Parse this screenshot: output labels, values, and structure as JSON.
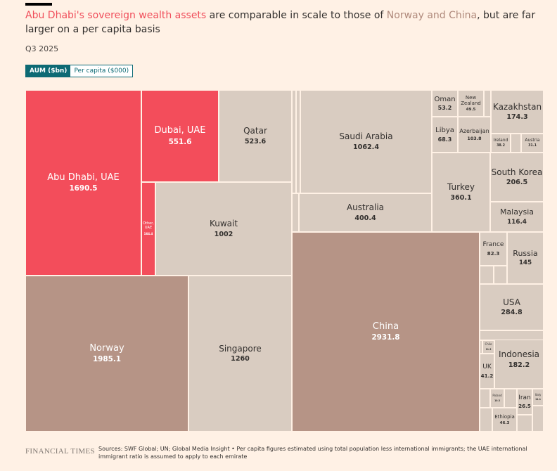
{
  "header": {
    "title_parts": [
      {
        "text": "Abu Dhabi's sovereign wealth assets",
        "style": "red"
      },
      {
        "text": " are comparable in scale to those of ",
        "style": "plain"
      },
      {
        "text": "Norway and China",
        "style": "brown"
      },
      {
        "text": ", but are far larger on a per capita basis",
        "style": "plain"
      }
    ],
    "subtitle": "Q3 2025",
    "toggle": [
      "AUM ($bn)",
      "Per capita ($000)"
    ],
    "toggle_selected": "AUM ($bn)"
  },
  "colors": {
    "uae": "#f34d5b",
    "highlight": "#b69486",
    "other": "#d9ccc1",
    "accent": "#0d6a74"
  },
  "chart_data": {
    "type": "treemap",
    "unit": "AUM ($bn)",
    "items": [
      {
        "name": "Abu Dhabi, UAE",
        "value": 1690.5,
        "group": "uae"
      },
      {
        "name": "Dubai, UAE",
        "value": 551.6,
        "group": "uae"
      },
      {
        "name": "Other, UAE",
        "value": 164.4,
        "group": "uae"
      },
      {
        "name": "Qatar",
        "value": 523.6,
        "group": "other"
      },
      {
        "name": "Kuwait",
        "value": 1002,
        "group": "other"
      },
      {
        "name": "Norway",
        "value": 1985.1,
        "group": "highlight"
      },
      {
        "name": "Singapore",
        "value": 1260,
        "group": "other"
      },
      {
        "name": "Saudi Arabia",
        "value": 1062.4,
        "group": "other"
      },
      {
        "name": "Australia",
        "value": 400.4,
        "group": "other"
      },
      {
        "name": "China",
        "value": 2931.8,
        "group": "highlight"
      },
      {
        "name": "Oman",
        "value": 53.2,
        "group": "other"
      },
      {
        "name": "New Zealand",
        "value": 49.5,
        "group": "other"
      },
      {
        "name": "Libya",
        "value": 68.3,
        "group": "other"
      },
      {
        "name": "Azerbaijan",
        "value": 103.8,
        "group": "other"
      },
      {
        "name": "Kazakhstan",
        "value": 174.3,
        "group": "other"
      },
      {
        "name": "Ireland",
        "value": 38.2,
        "group": "other"
      },
      {
        "name": "Austria",
        "value": 31.1,
        "group": "other"
      },
      {
        "name": "Turkey",
        "value": 360.1,
        "group": "other"
      },
      {
        "name": "South Korea",
        "value": 206.5,
        "group": "other"
      },
      {
        "name": "Malaysia",
        "value": 116.4,
        "group": "other"
      },
      {
        "name": "France",
        "value": 82.3,
        "group": "other"
      },
      {
        "name": "Russia",
        "value": 145,
        "group": "other"
      },
      {
        "name": "USA",
        "value": 284.8,
        "group": "other"
      },
      {
        "name": "Chile",
        "value": 11.3,
        "group": "other"
      },
      {
        "name": "UK",
        "value": 41.2,
        "group": "other"
      },
      {
        "name": "Indonesia",
        "value": 182.2,
        "group": "other"
      },
      {
        "name": "Poland",
        "value": 10.3,
        "group": "other"
      },
      {
        "name": "Iran",
        "value": 26.5,
        "group": "other"
      },
      {
        "name": "Italy",
        "value": 11.1,
        "group": "other"
      },
      {
        "name": "Ethiopia",
        "value": 46.3,
        "group": "other"
      }
    ]
  },
  "footer": {
    "brand": "FINANCIAL TIMES",
    "sources": "Sources: SWF Global; UN; Global Media Insight • Per capita figures estimated using total population less international immigrants; the UAE international immigrant ratio is assumed to apply to each emirate"
  }
}
